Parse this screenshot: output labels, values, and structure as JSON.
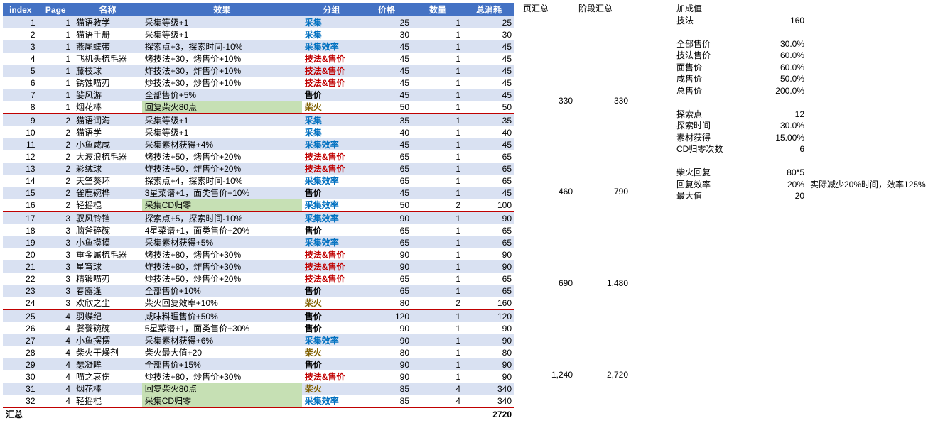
{
  "headers": {
    "index": "index",
    "page": "Page",
    "name": "名称",
    "effect": "效果",
    "group": "分组",
    "price": "价格",
    "qty": "数量",
    "cost": "总消耗",
    "pageSum": "页汇总",
    "stageSum": "阶段汇总",
    "bonus": "加成值",
    "grandTotal": "汇总"
  },
  "groupStyles": {
    "采集": "grp-blue",
    "采集效率": "grp-blue",
    "技法&售价": "grp-red",
    "售价": "grp-black",
    "柴火": "grp-olive"
  },
  "rows": [
    {
      "i": 1,
      "p": 1,
      "n": "猫语教学",
      "e": "采集等级+1",
      "g": "采集",
      "pr": 25,
      "q": 1,
      "c": 25
    },
    {
      "i": 2,
      "p": 1,
      "n": "猫语手册",
      "e": "采集等级+1",
      "g": "采集",
      "pr": 30,
      "q": 1,
      "c": 30
    },
    {
      "i": 3,
      "p": 1,
      "n": "燕尾蝶带",
      "e": "探索点+3，探索时间-10%",
      "g": "采集效率",
      "pr": 45,
      "q": 1,
      "c": 45
    },
    {
      "i": 4,
      "p": 1,
      "n": "飞机头梳毛器",
      "e": "烤技法+30，烤售价+10%",
      "g": "技法&售价",
      "pr": 45,
      "q": 1,
      "c": 45
    },
    {
      "i": 5,
      "p": 1,
      "n": "藤枝球",
      "e": "炸技法+30，炸售价+10%",
      "g": "技法&售价",
      "pr": 45,
      "q": 1,
      "c": 45
    },
    {
      "i": 6,
      "p": 1,
      "n": "锈蚀喵刃",
      "e": "炒技法+30，炒售价+10%",
      "g": "技法&售价",
      "pr": 45,
      "q": 1,
      "c": 45
    },
    {
      "i": 7,
      "p": 1,
      "n": "娑风游",
      "e": "全部售价+5%",
      "g": "售价",
      "pr": 45,
      "q": 1,
      "c": 45
    },
    {
      "i": 8,
      "p": 1,
      "n": "烟花棒",
      "e": "回复柴火80点",
      "g": "柴火",
      "pr": 50,
      "q": 1,
      "c": 50,
      "hl": true,
      "end": true,
      "ps": 330,
      "ss": 330
    },
    {
      "i": 9,
      "p": 2,
      "n": "猫语词海",
      "e": "采集等级+1",
      "g": "采集",
      "pr": 35,
      "q": 1,
      "c": 35
    },
    {
      "i": 10,
      "p": 2,
      "n": "猫语学",
      "e": "采集等级+1",
      "g": "采集",
      "pr": 40,
      "q": 1,
      "c": 40
    },
    {
      "i": 11,
      "p": 2,
      "n": "小鱼咸咸",
      "e": "采集素材获得+4%",
      "g": "采集效率",
      "pr": 45,
      "q": 1,
      "c": 45
    },
    {
      "i": 12,
      "p": 2,
      "n": "大波浪梳毛器",
      "e": "烤技法+50，烤售价+20%",
      "g": "技法&售价",
      "pr": 65,
      "q": 1,
      "c": 65
    },
    {
      "i": 13,
      "p": 2,
      "n": "彩绒球",
      "e": "炸技法+50，炸售价+20%",
      "g": "技法&售价",
      "pr": 65,
      "q": 1,
      "c": 65
    },
    {
      "i": 14,
      "p": 2,
      "n": "天竺葵环",
      "e": "探索点+4，探索时间-10%",
      "g": "采集效率",
      "pr": 65,
      "q": 1,
      "c": 65
    },
    {
      "i": 15,
      "p": 2,
      "n": "雀鹿碗桦",
      "e": "3星菜谱+1，面类售价+10%",
      "g": "售价",
      "pr": 45,
      "q": 1,
      "c": 45
    },
    {
      "i": 16,
      "p": 2,
      "n": "轻摇棍",
      "e": "采集CD归零",
      "g": "采集效率",
      "pr": 50,
      "q": 2,
      "c": 100,
      "hl": true,
      "end": true,
      "ps": 460,
      "ss": 790
    },
    {
      "i": 17,
      "p": 3,
      "n": "驭风铃铛",
      "e": "探索点+5，探索时间-10%",
      "g": "采集效率",
      "pr": 90,
      "q": 1,
      "c": 90
    },
    {
      "i": 18,
      "p": 3,
      "n": "脑斧碎碗",
      "e": "4星菜谱+1，面类售价+20%",
      "g": "售价",
      "pr": 65,
      "q": 1,
      "c": 65
    },
    {
      "i": 19,
      "p": 3,
      "n": "小鱼摸摸",
      "e": "采集素材获得+5%",
      "g": "采集效率",
      "pr": 65,
      "q": 1,
      "c": 65
    },
    {
      "i": 20,
      "p": 3,
      "n": "重金属梳毛器",
      "e": "烤技法+80，烤售价+30%",
      "g": "技法&售价",
      "pr": 90,
      "q": 1,
      "c": 90
    },
    {
      "i": 21,
      "p": 3,
      "n": "星穹球",
      "e": "炸技法+80，炸售价+30%",
      "g": "技法&售价",
      "pr": 90,
      "q": 1,
      "c": 90
    },
    {
      "i": 22,
      "p": 3,
      "n": "精锻喵刃",
      "e": "炒技法+50，炒售价+20%",
      "g": "技法&售价",
      "pr": 65,
      "q": 1,
      "c": 65
    },
    {
      "i": 23,
      "p": 3,
      "n": "春露逢",
      "e": "全部售价+10%",
      "g": "售价",
      "pr": 65,
      "q": 1,
      "c": 65
    },
    {
      "i": 24,
      "p": 3,
      "n": "欢欣之尘",
      "e": "柴火回复效率+10%",
      "g": "柴火",
      "pr": 80,
      "q": 2,
      "c": 160,
      "end": true,
      "ps": 690,
      "ss": 1480
    },
    {
      "i": 25,
      "p": 4,
      "n": "羽蝶纪",
      "e": "咸味料理售价+50%",
      "g": "售价",
      "pr": 120,
      "q": 1,
      "c": 120
    },
    {
      "i": 26,
      "p": 4,
      "n": "饕餮碗碗",
      "e": "5星菜谱+1，面类售价+30%",
      "g": "售价",
      "pr": 90,
      "q": 1,
      "c": 90
    },
    {
      "i": 27,
      "p": 4,
      "n": "小鱼摆摆",
      "e": "采集素材获得+6%",
      "g": "采集效率",
      "pr": 90,
      "q": 1,
      "c": 90
    },
    {
      "i": 28,
      "p": 4,
      "n": "柴火干燥剂",
      "e": "柴火最大值+20",
      "g": "柴火",
      "pr": 80,
      "q": 1,
      "c": 80
    },
    {
      "i": 29,
      "p": 4,
      "n": "瑟凝眸",
      "e": "全部售价+15%",
      "g": "售价",
      "pr": 90,
      "q": 1,
      "c": 90
    },
    {
      "i": 30,
      "p": 4,
      "n": "喵之哀伤",
      "e": "炒技法+80，炒售价+30%",
      "g": "技法&售价",
      "pr": 90,
      "q": 1,
      "c": 90
    },
    {
      "i": 31,
      "p": 4,
      "n": "烟花棒",
      "e": "回复柴火80点",
      "g": "柴火",
      "pr": 85,
      "q": 4,
      "c": 340,
      "hl": true
    },
    {
      "i": 32,
      "p": 4,
      "n": "轻摇棍",
      "e": "采集CD归零",
      "g": "采集效率",
      "pr": 85,
      "q": 4,
      "c": 340,
      "hl": true,
      "end": true,
      "ps": 1240,
      "ss": 2720
    }
  ],
  "grandTotal": 2720,
  "stats": [
    {
      "l": "技法",
      "v": "160"
    },
    {
      "gap": true
    },
    {
      "l": "全部售价",
      "v": "30.0%"
    },
    {
      "l": "技法售价",
      "v": "60.0%"
    },
    {
      "l": "面售价",
      "v": "60.0%"
    },
    {
      "l": "咸售价",
      "v": "50.0%"
    },
    {
      "l": "总售价",
      "v": "200.0%"
    },
    {
      "gap": true
    },
    {
      "l": "探索点",
      "v": "12"
    },
    {
      "l": "探索时间",
      "v": "30.0%"
    },
    {
      "l": "素材获得",
      "v": "15.00%"
    },
    {
      "l": "CD归零次数",
      "v": "6"
    },
    {
      "gap": true
    },
    {
      "l": "柴火回复",
      "v": "80*5"
    },
    {
      "l": "回复效率",
      "v": "20%",
      "note": "实际减少20%时间，效率125%"
    },
    {
      "l": "最大值",
      "v": "20"
    }
  ]
}
